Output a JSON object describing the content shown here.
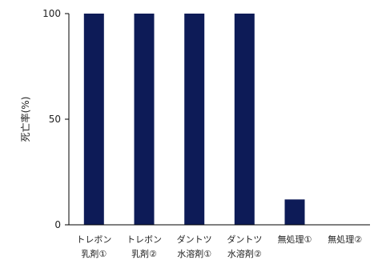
{
  "chart_data": {
    "type": "bar",
    "title": "",
    "xlabel": "",
    "ylabel": "死亡率(%)",
    "ylim": [
      0,
      100
    ],
    "yticks": [
      0,
      50,
      100
    ],
    "grid": false,
    "legend": "none",
    "bar_color": "#0d1b57",
    "categories": [
      [
        "トレボン",
        "乳剤①"
      ],
      [
        "トレボン",
        "乳剤②"
      ],
      [
        "ダントツ",
        "水溶剤①"
      ],
      [
        "ダントツ",
        "水溶剤②"
      ],
      [
        "無処理①"
      ],
      [
        "無処理②"
      ]
    ],
    "values": [
      100,
      100,
      100,
      100,
      12,
      0
    ]
  }
}
